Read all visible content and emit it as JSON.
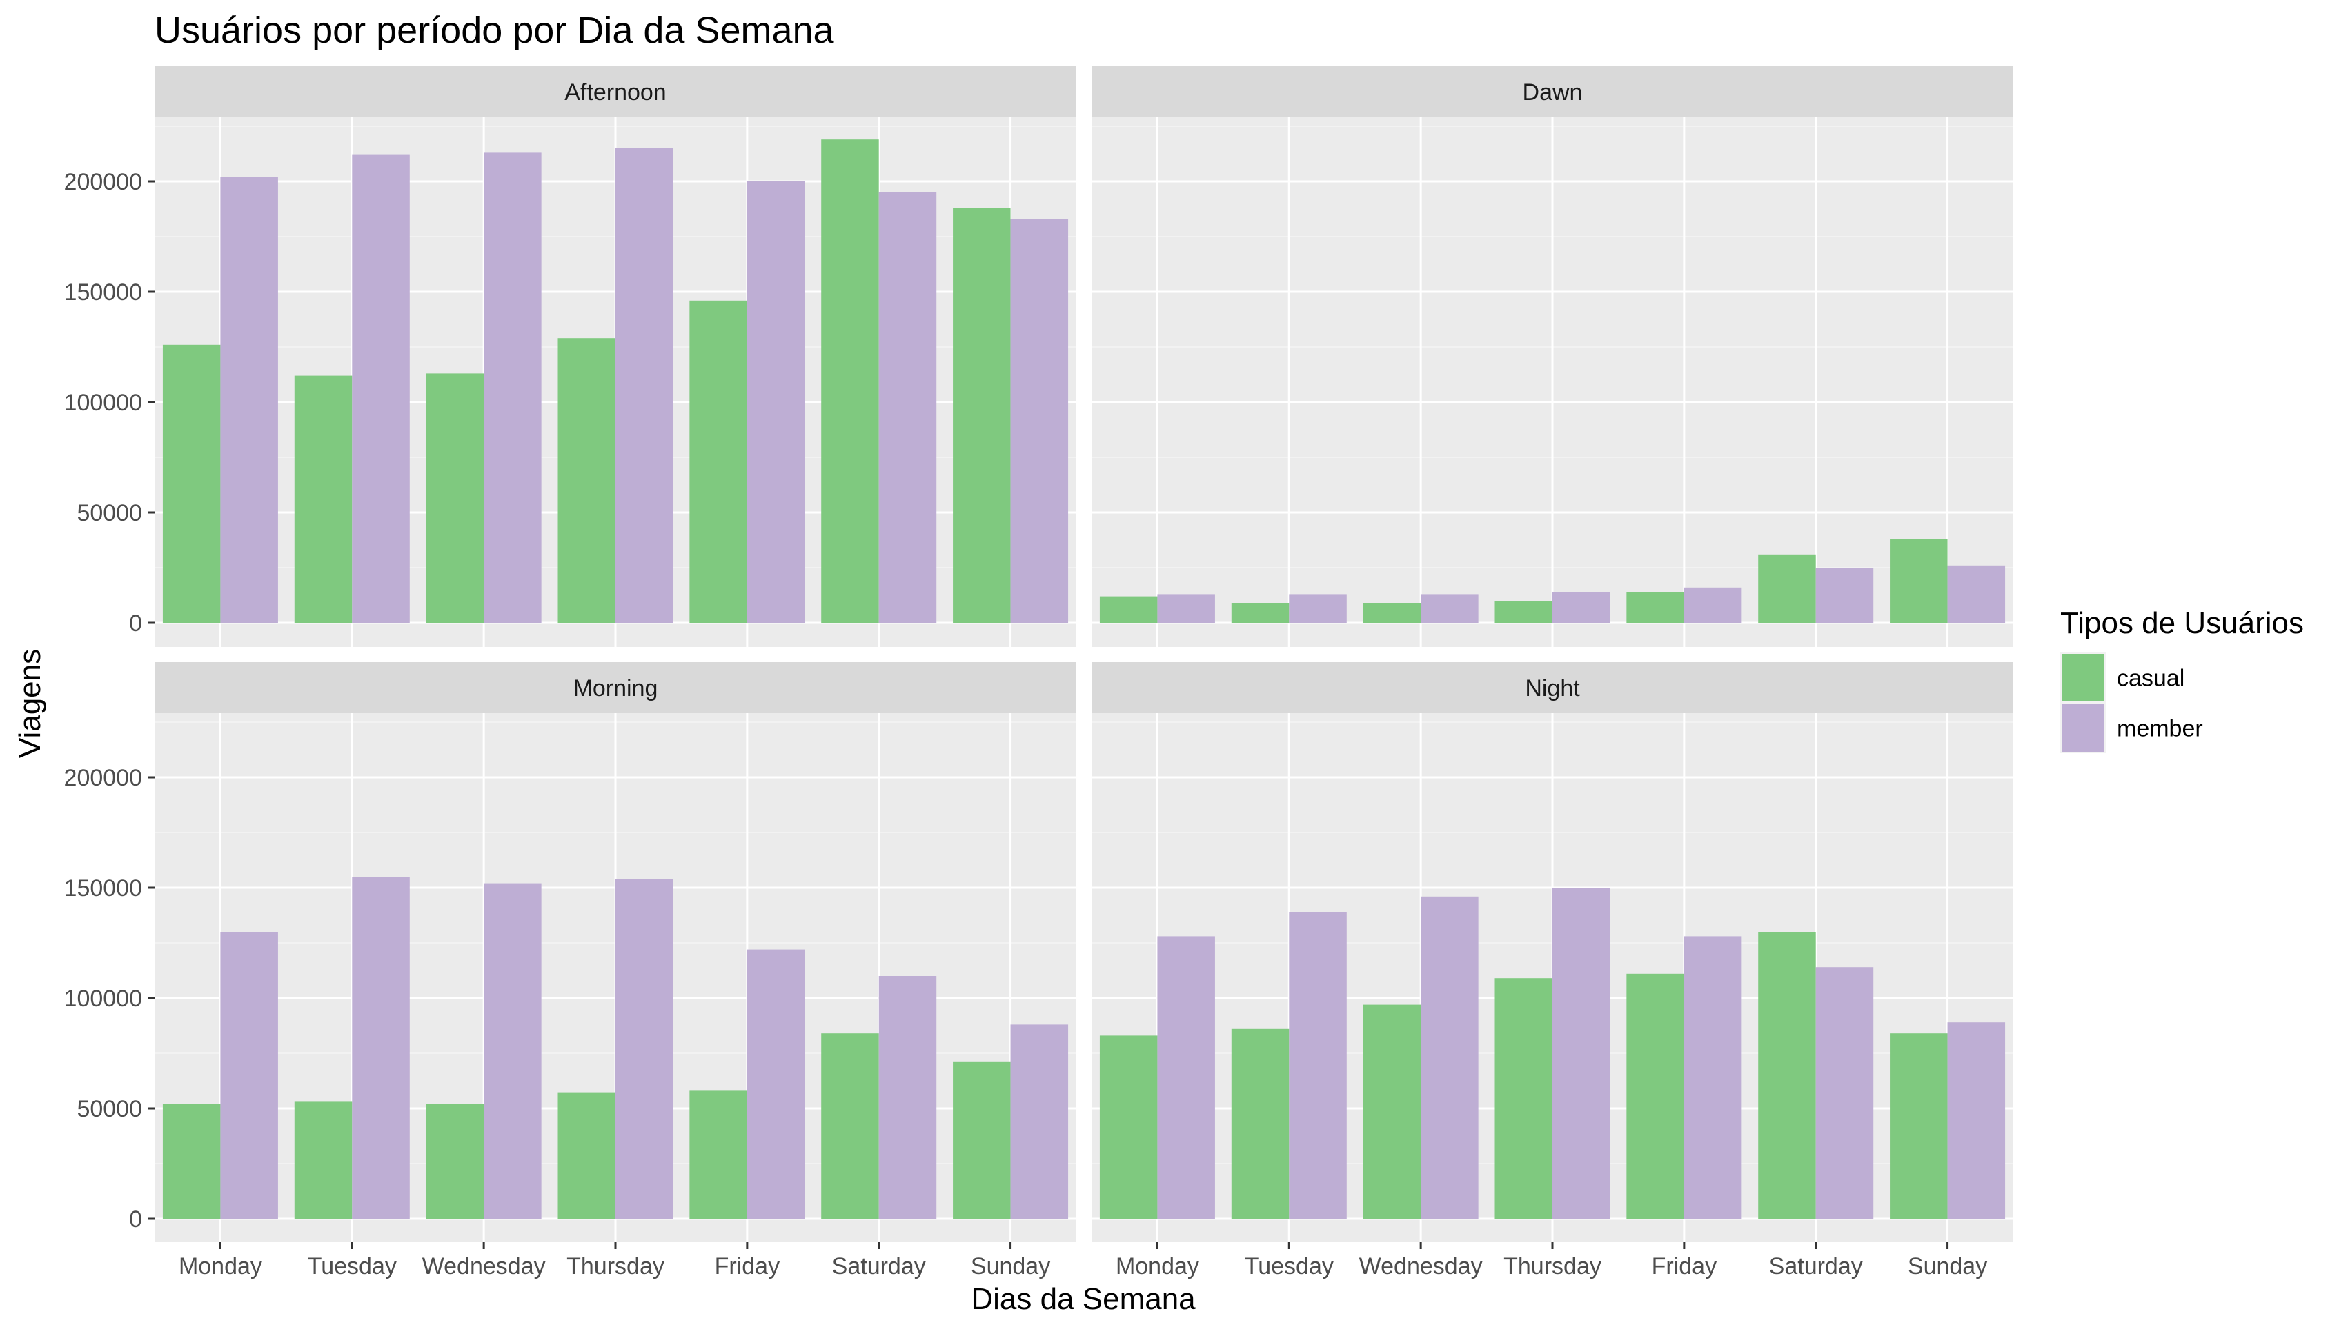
{
  "chart_data": {
    "type": "bar",
    "title": "Usuários por período por Dia da Semana",
    "xlabel": "Dias da Semana",
    "ylabel": "Viagens",
    "ylim": [
      0,
      230000
    ],
    "yticks": [
      0,
      50000,
      100000,
      150000,
      200000
    ],
    "ytick_labels": [
      "0",
      "50000",
      "100000",
      "150000",
      "200000"
    ],
    "categories": [
      "Monday",
      "Tuesday",
      "Wednesday",
      "Thursday",
      "Friday",
      "Saturday",
      "Sunday"
    ],
    "grid": true,
    "legend": {
      "title": "Tipos de Usuários",
      "position": "right",
      "entries": [
        "casual",
        "member"
      ]
    },
    "series_colors": {
      "casual": "#7fc97f",
      "member": "#beaed4"
    },
    "panels": [
      {
        "name": "Afternoon",
        "series": [
          {
            "name": "casual",
            "values": [
              126000,
              112000,
              113000,
              129000,
              146000,
              219000,
              188000
            ]
          },
          {
            "name": "member",
            "values": [
              202000,
              212000,
              213000,
              215000,
              200000,
              195000,
              183000
            ]
          }
        ]
      },
      {
        "name": "Dawn",
        "series": [
          {
            "name": "casual",
            "values": [
              12000,
              9000,
              9000,
              10000,
              14000,
              31000,
              38000
            ]
          },
          {
            "name": "member",
            "values": [
              13000,
              13000,
              13000,
              14000,
              16000,
              25000,
              26000
            ]
          }
        ]
      },
      {
        "name": "Morning",
        "series": [
          {
            "name": "casual",
            "values": [
              52000,
              53000,
              52000,
              57000,
              58000,
              84000,
              71000
            ]
          },
          {
            "name": "member",
            "values": [
              130000,
              155000,
              152000,
              154000,
              122000,
              110000,
              88000
            ]
          }
        ]
      },
      {
        "name": "Night",
        "series": [
          {
            "name": "casual",
            "values": [
              83000,
              86000,
              97000,
              109000,
              111000,
              130000,
              84000
            ]
          },
          {
            "name": "member",
            "values": [
              128000,
              139000,
              146000,
              150000,
              128000,
              114000,
              89000
            ]
          }
        ]
      }
    ]
  }
}
